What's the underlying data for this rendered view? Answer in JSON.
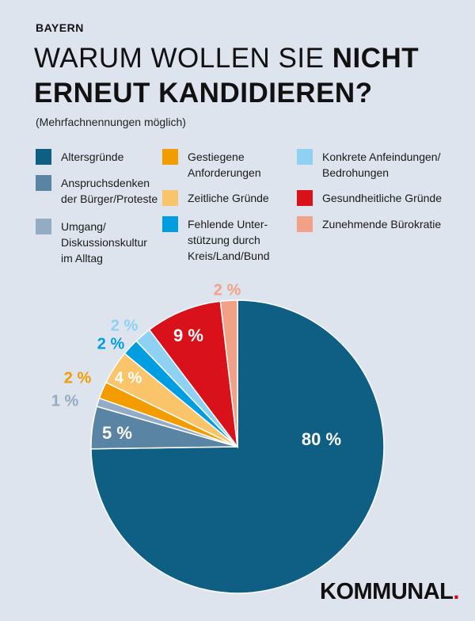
{
  "header": {
    "eyebrow": "BAYERN",
    "title_light": "WARUM WOLLEN SIE ",
    "title_bold_1": "NICHT",
    "title_bold_2": "ERNEUT KANDIDIEREN?",
    "subtitle": "(Mehrfachnennungen möglich)"
  },
  "logo": {
    "text": "KOMMUNAL",
    "dot": "."
  },
  "chart_data": {
    "type": "pie",
    "title": "WARUM WOLLEN SIE NICHT ERNEUT KANDIDIEREN?",
    "subtitle": "(Mehrfachnennungen möglich)",
    "slices": [
      {
        "name": "Altersgründe",
        "value": 80,
        "label": "80 %",
        "color": "#0f5f84"
      },
      {
        "name": "Anspruchsdenken der Bürger/Proteste",
        "value": 5,
        "label": "5 %",
        "color": "#5a84a3"
      },
      {
        "name": "Umgang/ Diskussionskultur im Alltag",
        "value": 1,
        "label": "1 %",
        "color": "#93abc4"
      },
      {
        "name": "Gestiegene Anforderungen",
        "value": 2,
        "label": "2 %",
        "color": "#f39c00"
      },
      {
        "name": "Zeitliche Gründe",
        "value": 4,
        "label": "4 %",
        "color": "#f9c46a"
      },
      {
        "name": "Fehlende Unterstützung durch Kreis/Land/Bund",
        "value": 2,
        "label": "2 %",
        "color": "#009ee0"
      },
      {
        "name": "Konkrete Anfeindungen/ Bedrohungen",
        "value": 2,
        "label": "2 %",
        "color": "#8ed1f3"
      },
      {
        "name": "Gesundheitliche Gründe",
        "value": 9,
        "label": "9 %",
        "color": "#d9111b"
      },
      {
        "name": "Zunehmende Bürokratie",
        "value": 2,
        "label": "2 %",
        "color": "#f2a086"
      }
    ],
    "legend": [
      {
        "label": "Altersgründe",
        "color": "#0f5f84"
      },
      {
        "label": "Anspruchsdenken\nder Bürger/Proteste",
        "color": "#5a84a3"
      },
      {
        "label": "Umgang/\nDiskussionskultur\nim Alltag",
        "color": "#93abc4"
      },
      {
        "label": "Gestiegene\nAnforderungen",
        "color": "#f39c00"
      },
      {
        "label": "Zeitliche Gründe",
        "color": "#f9c46a"
      },
      {
        "label": "Fehlende Unter-\nstützung durch\nKreis/Land/Bund",
        "color": "#009ee0"
      },
      {
        "label": "Konkrete Anfeindungen/\nBedrohungen",
        "color": "#8ed1f3"
      },
      {
        "label": "Gesundheitliche Gründe",
        "color": "#d9111b"
      },
      {
        "label": "Zunehmende Bürokratie",
        "color": "#f2a086"
      }
    ]
  }
}
